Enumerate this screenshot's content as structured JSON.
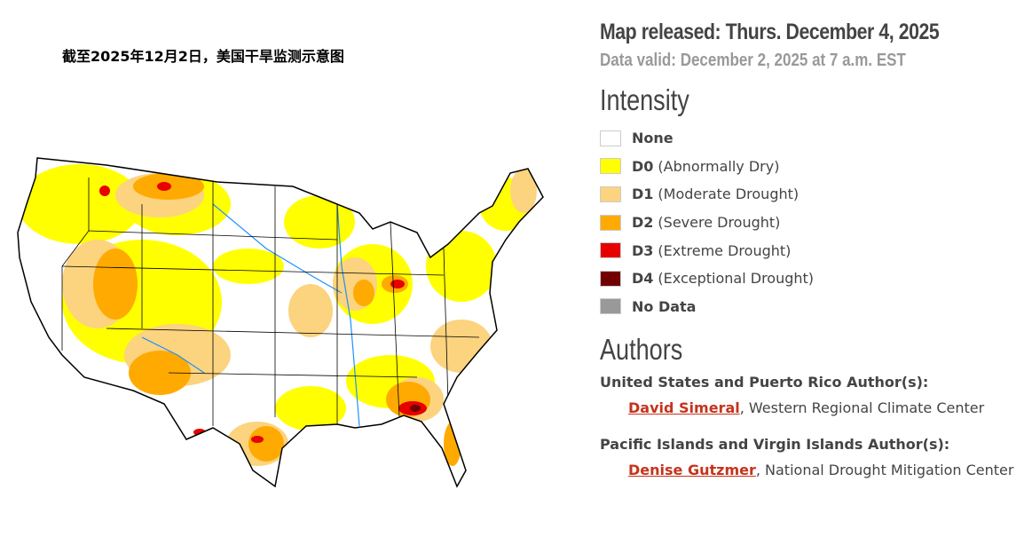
{
  "map_title": "截至2025年12月2日，美国干旱监测示意图",
  "released": "Map released: Thurs. December 4, 2025",
  "valid": "Data valid: December 2, 2025 at 7 a.m. EST",
  "intensity_heading": "Intensity",
  "legend": [
    {
      "code": "None",
      "label": "",
      "color": "#ffffff"
    },
    {
      "code": "D0",
      "label": "(Abnormally Dry)",
      "color": "#ffff00"
    },
    {
      "code": "D1",
      "label": "(Moderate Drought)",
      "color": "#fcd37f"
    },
    {
      "code": "D2",
      "label": "(Severe Drought)",
      "color": "#ffaa00"
    },
    {
      "code": "D3",
      "label": "(Extreme Drought)",
      "color": "#e60000"
    },
    {
      "code": "D4",
      "label": "(Exceptional Drought)",
      "color": "#730000"
    },
    {
      "code": "No Data",
      "label": "",
      "color": "#999999"
    }
  ],
  "authors_heading": "Authors",
  "authors": [
    {
      "heading": "United States and Puerto Rico Author(s):",
      "name": "David Simeral",
      "org": ", Western Regional Climate Center"
    },
    {
      "heading": "Pacific Islands and Virgin Islands Author(s):",
      "name": "Denise Gutzmer",
      "org": ", National Drought Mitigation Center"
    }
  ]
}
